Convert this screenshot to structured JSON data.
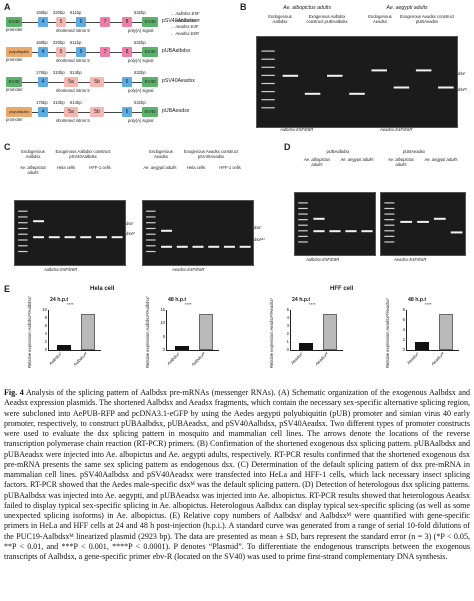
{
  "panels": {
    "A": {
      "letter": "A",
      "constructs": [
        {
          "name": "pSV40Aalbdsx",
          "promoter": "SV40",
          "promoter_label": "promoter",
          "exons": [
            "4",
            "5",
            "6",
            "7",
            "8"
          ],
          "sizes_top": [
            "168bp",
            "320bp",
            "611bp"
          ],
          "size_right": "532bp",
          "intron_label": "shortened intron 5",
          "poly": "poly(A) signal",
          "end": "SV40"
        },
        {
          "name": "pUBAalbdsx",
          "promoter": "polyubiquitin",
          "promoter_label": "promoter",
          "exons": [
            "4",
            "5",
            "6",
            "7",
            "8"
          ],
          "sizes_top": [
            "168bp",
            "320bp",
            "611bp"
          ],
          "size_right": "532bp",
          "intron_label": "shortened intron 5",
          "poly": "poly(A) signal",
          "end": "SV40"
        },
        {
          "name": "pSV40Aeadsx",
          "promoter": "SV40",
          "promoter_label": "promoter",
          "exons": [
            "4",
            "5a",
            "5b",
            "6"
          ],
          "sizes_top": [
            "176bp",
            "310bp",
            "614bp"
          ],
          "size_right": "532bp",
          "intron_label": "shortened intron 5",
          "poly": "poly(A) signal",
          "end": "SV40"
        },
        {
          "name": "pUBAeadsx",
          "promoter": "polyubiquitin",
          "promoter_label": "promoter",
          "exons": [
            "4",
            "5a",
            "5b",
            "6"
          ],
          "sizes_top": [
            "176bp",
            "310bp",
            "614bp"
          ],
          "size_right": "532bp",
          "intron_label": "shortened intron 5",
          "poly": "poly(A) signal",
          "end": "SV40"
        }
      ],
      "legend": [
        "Aalbdsx-E5F",
        "Aalbdsx-E8R",
        "Aeadsx-E4F",
        "Aeadsx-E6R"
      ]
    },
    "B": {
      "letter": "B",
      "header_left": "Ae. albopictus adults",
      "header_right": "Ae. aegypti adults",
      "sub_left_1": "Endogenous Aalbdsx",
      "sub_left_2": "Exogenous Aalbdsx construct pUBAalbdsx",
      "sub_right_1": "Endogenous Aeadsx",
      "sub_right_2": "Exogenous Aeadsx construct pUBAeadsx",
      "lanes": [
        "M",
        "♀",
        "♂",
        "♀",
        "♂"
      ],
      "band_f": "dsxᶠ",
      "band_m": "dsxᴹ",
      "primers_left": "Aalbdsx-E5F/E8R",
      "primers_right": "Aeadsx-E4F/E6R"
    },
    "C": {
      "letter": "C",
      "left_header_1": "Endogenous Aalbdsx",
      "left_header_2": "Exogenous Aalbdsx construct pSV40Aalbdsx",
      "left_cells": [
        "Hela cells",
        "HFF-1 cells"
      ],
      "left_species": "Ae. albopictus adults",
      "right_header_1": "Endogenous Aeadsx",
      "right_header_2": "Exogenous Aeadsx construct pSV40Aeadsx",
      "right_species": "Ae. aegypti adults",
      "timepoints": [
        "24 h.p.t",
        "48 h.p.t",
        "24 h.p.t",
        "48 h.p.t"
      ],
      "primers_left": "Aalbdsx-E5F/E8R",
      "primers_right": "Aeadsx-E4F/E6R",
      "band_f": "dsxᶠ",
      "band_m": "dsxᴹ",
      "band_mu": "dsxᴹᵁ"
    },
    "D": {
      "letter": "D",
      "left_header": "pUBAalbdsx",
      "right_header": "pUBAeadsx",
      "species_left": "Ae. albopictus adults",
      "species_right": "Ae. aegypti adults",
      "primers_left": "Aalbdsx-E5F/E8R",
      "primers_right": "Aeadsx-E4F/E6R"
    },
    "E": {
      "letter": "E",
      "hela_title": "Hela cell",
      "hff_title": "HFF cell",
      "ylabel_albo": "Relative expression Aalbdsxᴹ/Aalbdsxᶠ",
      "ylabel_aea": "Relative expression Aeadsxᴹ/Aeadsxᶠ",
      "plots": [
        {
          "title": "24 h.p.t",
          "categories": [
            "Aalbdsxᶠ",
            "Aalbdsxᴹ"
          ],
          "values": [
            0.15,
            1.0
          ],
          "yticks": [
            "0",
            "2",
            "4",
            "6",
            "8",
            "10"
          ],
          "sig": "****"
        },
        {
          "title": "48 h.p.t",
          "categories": [
            "Aalbdsxᶠ",
            "Aalbdsxᴹ"
          ],
          "values": [
            0.12,
            1.0
          ],
          "yticks": [
            "0",
            "5",
            "10",
            "15"
          ],
          "sig": "****"
        },
        {
          "title": "24 h.p.t",
          "categories": [
            "Aeadsxᶠ",
            "Aeadsxᴹ"
          ],
          "values": [
            0.2,
            1.0
          ],
          "yticks": [
            "0",
            "1",
            "2",
            "3",
            "4",
            "5"
          ],
          "sig": "****"
        },
        {
          "title": "48 h.p.t",
          "categories": [
            "Aeadsxᶠ",
            "Aeadsxᴹ"
          ],
          "values": [
            0.22,
            1.0
          ],
          "yticks": [
            "0",
            "2",
            "4",
            "6",
            "8"
          ],
          "sig": "****"
        }
      ]
    }
  },
  "caption": {
    "label": "Fig. 4",
    "text": "Analysis of the splicing pattern of Aalbdsx pre-mRNAs (messenger RNAs). (A) Schematic organization of the exogenous Aalbdsx and Aeadsx expression plasmids. The shortened Aalbdsx and Aeadsx fragments, which contain the necessary sex-specific alternative splicing region, were subcloned into AePUB-RFP and pcDNA3.1-eGFP by using the Aedes aegypti polyubiquitin (pUB) promoter and simian virus 40 early promoter, respectively, to construct pUBAalbdsx, pUBAeadsx, and pSV40Aalbdsx, pSV40Aeadsx. Two different types of promoter constructs were used to evaluate the dsx splicing pattern in mosquito and mammalian cell lines. The arrows denote the locations of the reverse transcription polymerase chain reaction (RT-PCR) primers. (B) Confirmation of the shortened exogenous dsx splicing pattern. pUBAalbdsx and pUBAeadsx were injected into Ae. albopictus and Ae. aegypti adults, respectively. RT-PCR results confirmed that the shortened exogenous dsx pre-mRNA presents the same sex splicing pattern as endogenous dsx. (C) Determination of the default splicing pattern of dsx pre-mRNA in mammalian cell lines. pSV40Aalbdsx and pSV40Aeadsx were transfected into HeLa and HFF-1 cells, which lack necessary insect splicing factors. RT-PCR showed that the Aedes male-specific dsxᴹ was the default splicing pattern. (D) Detection of heterologous dsx splicing patterns. pUBAalbdsx was injected into Ae. aegypti, and pUBAeadsx was injected into Ae. albopictus. RT-PCR results showed that heterologous Aeadsx failed to display typical sex-specific splicing in Ae. albopictus. Heterologous Aalbdsx can display typical sex-specific splicing (as well as some unexpected splicing isoforms) in Ae. albopictus. (E) Relative copy numbers of Aalbdsxᶠ and Aalbdsxᴹ were quantified with gene-specific primers in HeLa and HFF cells at 24 and 48 h post-injection (h.p.i.). A standard curve was generated from a range of serial 10-fold dilutions of the PUC19-Aalbdsxᴹ linearized plasmid (2923 bp). The data are presented as mean ± SD, bars represent the standard error (n = 3) (*P < 0.05, **P < 0.01, and ***P < 0.001, ****P < 0.0001). P denotes “Plasmid”. To differentiate the endogenous transcripts between the exogenous transcripts of Aalbdsx, a gene-specific primer ebv-R (located on the SV40) was used to prime first-strand complementary DNA synthesis."
  }
}
